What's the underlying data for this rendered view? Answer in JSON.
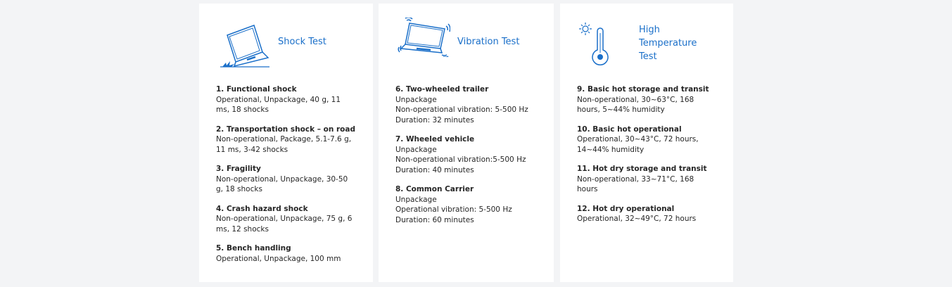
{
  "accent": "#1a6fc9",
  "cards": [
    {
      "title": "Shock Test",
      "icon": "laptop-shock-icon",
      "items": [
        {
          "name": "1. Functional shock",
          "desc": "Operational, Unpackage, 40 g, 11 ms, 18 shocks"
        },
        {
          "name": "2. Transportation shock – on road",
          "desc": "Non-operational, Package, 5.1-7.6 g, 11 ms, 3-42 shocks"
        },
        {
          "name": "3. Fragility",
          "desc": "Non-operational, Unpackage, 30-50 g, 18 shocks"
        },
        {
          "name": "4. Crash hazard shock",
          "desc": "Non-operational, Unpackage, 75 g, 6 ms, 12 shocks"
        },
        {
          "name": "5. Bench handling",
          "desc": "Operational, Unpackage, 100 mm"
        }
      ]
    },
    {
      "title": "Vibration Test",
      "icon": "laptop-vibration-icon",
      "items": [
        {
          "name": "6. Two-wheeled trailer",
          "desc": [
            "Unpackage",
            "Non-operational vibration: 5-500 Hz",
            "Duration: 32 minutes"
          ]
        },
        {
          "name": "7. Wheeled vehicle",
          "desc": [
            "Unpackage",
            "Non-operational vibration:5-500 Hz",
            "Duration: 40 minutes"
          ]
        },
        {
          "name": "8. Common Carrier",
          "desc": [
            "Unpackage",
            "Operational vibration: 5-500 Hz",
            "Duration: 60 minutes"
          ]
        }
      ]
    },
    {
      "title": "High Temperature Test",
      "icon": "thermometer-sun-icon",
      "items": [
        {
          "name": "9. Basic hot storage and transit",
          "desc": "Non-operational, 30~63°C, 168 hours, 5~44% humidity"
        },
        {
          "name": "10. Basic hot operational",
          "desc": "Operational, 30~43°C, 72 hours, 14~44% humidity"
        },
        {
          "name": "11. Hot dry storage and transit",
          "desc": "Non-operational, 33~71°C, 168 hours"
        },
        {
          "name": "12. Hot dry operational",
          "desc": "Operational, 32~49°C, 72 hours"
        }
      ]
    }
  ]
}
